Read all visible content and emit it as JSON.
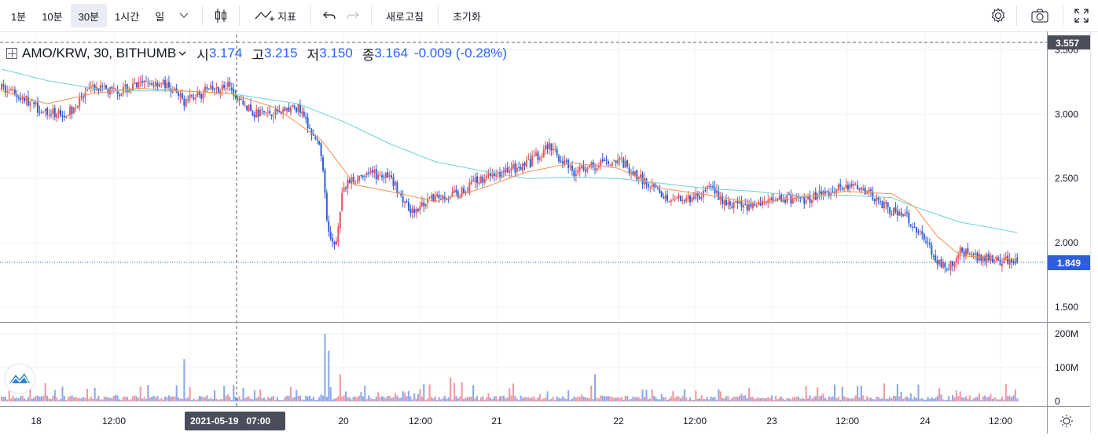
{
  "toolbar": {
    "intervals": [
      "1분",
      "10분",
      "30분",
      "1시간",
      "일"
    ],
    "active_interval": "30분",
    "indicator_label": "지표",
    "refresh_label": "새로고침",
    "reset_label": "초기화"
  },
  "legend": {
    "symbol": "AMO/KRW, 30, BITHUMB",
    "open_label": "시",
    "open": "3.174",
    "high_label": "고",
    "high": "3.215",
    "low_label": "저",
    "low": "3.150",
    "close_label": "종",
    "close": "3.164",
    "change": "-0.009 (-0.28%)"
  },
  "crosshair": {
    "date_label": "2021-05-19   07:00",
    "price_label": "3.557"
  },
  "last_price_label": "1.849",
  "colors": {
    "up": "#e05561",
    "down": "#2f5fd8",
    "ma_fast": "#f5904d",
    "ma_slow": "#6fd0dd",
    "accent": "#2962ff"
  },
  "chart_data": {
    "type": "candlestick",
    "symbol": "AMO/KRW",
    "interval": "30",
    "exchange": "BITHUMB",
    "price_ticks": [
      "1.500",
      "2.000",
      "2.500",
      "3.000",
      "3.500"
    ],
    "price_ylim": [
      1.5,
      3.557
    ],
    "volume_ticks": [
      "0",
      "100M",
      "200M"
    ],
    "volume_ylim": [
      0,
      200
    ],
    "x_ticks": [
      "18",
      "12:00",
      "19",
      "20",
      "12:00",
      "21",
      "22",
      "12:00",
      "23",
      "12:00",
      "24",
      "12:00"
    ],
    "close_path": [
      [
        0,
        3.2
      ],
      [
        12,
        3.12
      ],
      [
        24,
        3.0
      ],
      [
        36,
        3.02
      ],
      [
        48,
        3.2
      ],
      [
        60,
        3.17
      ],
      [
        72,
        3.22
      ],
      [
        84,
        3.25
      ],
      [
        96,
        3.1
      ],
      [
        108,
        3.18
      ],
      [
        120,
        3.22
      ],
      [
        132,
        3.0
      ],
      [
        144,
        3.02
      ],
      [
        156,
        3.05
      ],
      [
        168,
        2.7
      ],
      [
        172,
        2.05
      ],
      [
        175,
        1.95
      ],
      [
        180,
        2.45
      ],
      [
        192,
        2.55
      ],
      [
        204,
        2.5
      ],
      [
        216,
        2.25
      ],
      [
        228,
        2.35
      ],
      [
        240,
        2.38
      ],
      [
        252,
        2.5
      ],
      [
        264,
        2.55
      ],
      [
        276,
        2.6
      ],
      [
        288,
        2.75
      ],
      [
        300,
        2.55
      ],
      [
        312,
        2.6
      ],
      [
        324,
        2.65
      ],
      [
        336,
        2.5
      ],
      [
        348,
        2.36
      ],
      [
        360,
        2.32
      ],
      [
        372,
        2.42
      ],
      [
        384,
        2.28
      ],
      [
        396,
        2.3
      ],
      [
        408,
        2.35
      ],
      [
        420,
        2.33
      ],
      [
        432,
        2.38
      ],
      [
        444,
        2.45
      ],
      [
        456,
        2.38
      ],
      [
        468,
        2.25
      ],
      [
        476,
        2.2
      ],
      [
        484,
        2.05
      ],
      [
        492,
        1.85
      ],
      [
        498,
        1.82
      ],
      [
        504,
        1.93
      ],
      [
        516,
        1.88
      ],
      [
        528,
        1.86
      ],
      [
        534,
        1.849
      ]
    ],
    "ma_fast": [
      [
        0,
        3.18
      ],
      [
        24,
        3.08
      ],
      [
        48,
        3.16
      ],
      [
        72,
        3.2
      ],
      [
        96,
        3.18
      ],
      [
        120,
        3.16
      ],
      [
        144,
        3.05
      ],
      [
        168,
        2.8
      ],
      [
        186,
        2.45
      ],
      [
        204,
        2.4
      ],
      [
        228,
        2.32
      ],
      [
        252,
        2.42
      ],
      [
        276,
        2.55
      ],
      [
        300,
        2.62
      ],
      [
        324,
        2.58
      ],
      [
        348,
        2.42
      ],
      [
        372,
        2.37
      ],
      [
        396,
        2.31
      ],
      [
        420,
        2.35
      ],
      [
        444,
        2.4
      ],
      [
        468,
        2.38
      ],
      [
        480,
        2.28
      ],
      [
        492,
        2.05
      ],
      [
        504,
        1.9
      ],
      [
        534,
        1.87
      ]
    ],
    "ma_slow": [
      [
        0,
        3.35
      ],
      [
        24,
        3.26
      ],
      [
        48,
        3.2
      ],
      [
        72,
        3.18
      ],
      [
        96,
        3.18
      ],
      [
        120,
        3.16
      ],
      [
        156,
        3.08
      ],
      [
        180,
        2.94
      ],
      [
        204,
        2.77
      ],
      [
        228,
        2.63
      ],
      [
        252,
        2.56
      ],
      [
        276,
        2.5
      ],
      [
        300,
        2.51
      ],
      [
        324,
        2.5
      ],
      [
        348,
        2.46
      ],
      [
        372,
        2.42
      ],
      [
        396,
        2.4
      ],
      [
        420,
        2.36
      ],
      [
        444,
        2.37
      ],
      [
        468,
        2.35
      ],
      [
        480,
        2.28
      ],
      [
        492,
        2.22
      ],
      [
        504,
        2.16
      ],
      [
        534,
        2.08
      ]
    ],
    "volume_spikes": [
      [
        96,
        125
      ],
      [
        170,
        200
      ],
      [
        172,
        150
      ],
      [
        178,
        80
      ],
      [
        236,
        70
      ],
      [
        312,
        80
      ]
    ]
  }
}
